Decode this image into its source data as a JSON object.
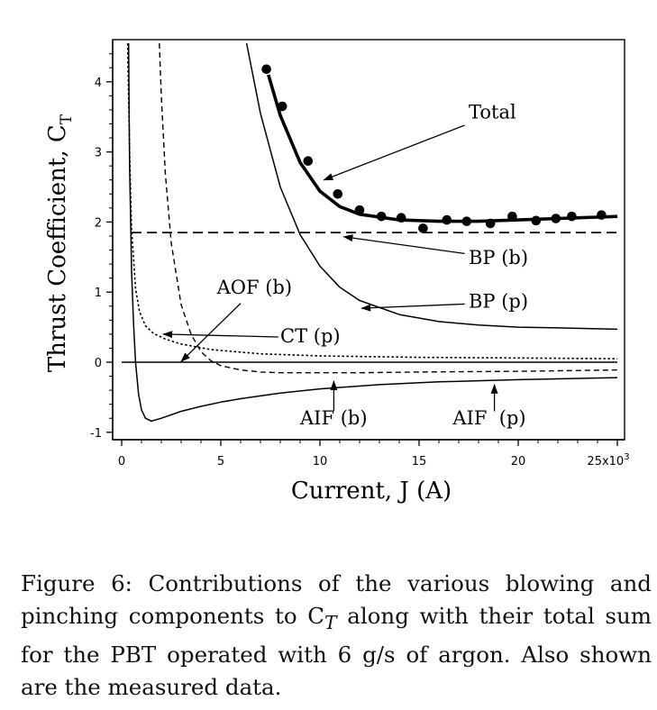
{
  "chart_data": {
    "type": "line",
    "xlabel": "Current, J (A)",
    "ylabel": "Thrust Coefficient, C",
    "ylabel_sub": "T",
    "x_ticks": [
      "0",
      "5",
      "10",
      "15",
      "20",
      "25x10"
    ],
    "x_ticks_exponent": "3",
    "y_ticks": [
      "-1",
      "0",
      "1",
      "2",
      "3",
      "4"
    ],
    "xlim": [
      0,
      25000
    ],
    "ylim": [
      -1.05,
      4.55
    ],
    "grid": false,
    "series": [
      {
        "name": "Total",
        "style": "thick",
        "x": [
          7400,
          8000,
          9000,
          10000,
          11000,
          12000,
          14000,
          16000,
          18000,
          20000,
          22000,
          24000,
          25000
        ],
        "y": [
          4.1,
          3.52,
          2.85,
          2.44,
          2.22,
          2.11,
          2.03,
          2.01,
          2.01,
          2.03,
          2.05,
          2.07,
          2.08
        ]
      },
      {
        "name": "BP (b)",
        "style": "dashed-long",
        "x": [
          500,
          25000
        ],
        "y": [
          1.85,
          1.85
        ]
      },
      {
        "name": "BP (p)",
        "style": "solid",
        "x": [
          6300,
          7000,
          8000,
          9000,
          10000,
          11000,
          12000,
          14000,
          16000,
          18000,
          20000,
          22000,
          25000
        ],
        "y": [
          4.55,
          3.55,
          2.5,
          1.82,
          1.37,
          1.07,
          0.88,
          0.68,
          0.58,
          0.53,
          0.5,
          0.49,
          0.47
        ]
      },
      {
        "name": "CT (p)",
        "style": "dotted",
        "x": [
          300,
          400,
          500,
          700,
          900,
          1200,
          1600,
          2200,
          3000,
          4500,
          7000,
          10000,
          15000,
          20000,
          25000
        ],
        "y": [
          4.55,
          3.0,
          1.9,
          1.05,
          0.72,
          0.52,
          0.41,
          0.33,
          0.26,
          0.18,
          0.12,
          0.09,
          0.07,
          0.06,
          0.05
        ]
      },
      {
        "name": "AOF (b)",
        "style": "solid",
        "x": [
          0,
          25000
        ],
        "y": [
          0.0,
          0.0
        ]
      },
      {
        "name": "AIF (b)",
        "style": "dashed",
        "x": [
          1900,
          2000,
          2200,
          2500,
          3000,
          3500,
          4000,
          4500,
          5000,
          6000,
          7000,
          8000,
          10000,
          12000,
          15000,
          20000,
          25000
        ],
        "y": [
          4.55,
          3.8,
          2.7,
          1.7,
          0.82,
          0.4,
          0.15,
          0.02,
          -0.05,
          -0.11,
          -0.14,
          -0.15,
          -0.15,
          -0.15,
          -0.14,
          -0.13,
          -0.11
        ]
      },
      {
        "name": "AIF (p)",
        "style": "solid",
        "x": [
          350,
          400,
          500,
          600,
          700,
          850,
          1000,
          1200,
          1500,
          2000,
          3000,
          4000,
          5000,
          6000,
          8000,
          10000,
          13000,
          16000,
          20000,
          25000
        ],
        "y": [
          4.55,
          2.8,
          1.3,
          0.55,
          0.0,
          -0.45,
          -0.68,
          -0.8,
          -0.84,
          -0.8,
          -0.7,
          -0.63,
          -0.57,
          -0.52,
          -0.44,
          -0.38,
          -0.32,
          -0.28,
          -0.25,
          -0.22
        ]
      }
    ],
    "measured_points": {
      "x": [
        7300,
        8100,
        9400,
        10900,
        12000,
        13100,
        14100,
        15200,
        16400,
        17400,
        18600,
        19700,
        20900,
        21900,
        22700,
        24200
      ],
      "y": [
        4.18,
        3.65,
        2.87,
        2.4,
        2.17,
        2.08,
        2.06,
        1.91,
        2.03,
        2.01,
        1.98,
        2.08,
        2.02,
        2.05,
        2.08,
        2.1
      ]
    },
    "annotations": [
      {
        "text": "Total",
        "label_at": [
          17500,
          3.48
        ],
        "arrow_from": [
          17300,
          3.38
        ],
        "arrow_to": [
          10200,
          2.6
        ]
      },
      {
        "text": "BP (b)",
        "label_at": [
          17500,
          1.4
        ],
        "arrow_from": [
          17300,
          1.55
        ],
        "arrow_to": [
          11200,
          1.79
        ]
      },
      {
        "text": "BP (p)",
        "label_at": [
          17500,
          0.78
        ],
        "arrow_from": [
          17300,
          0.83
        ],
        "arrow_to": [
          12100,
          0.77
        ]
      },
      {
        "text": "CT (p)",
        "label_at": [
          8000,
          0.28
        ],
        "arrow_from": [
          7900,
          0.36
        ],
        "arrow_to": [
          2100,
          0.4
        ]
      },
      {
        "text": "AOF (b)",
        "label_at": [
          4800,
          0.98
        ],
        "arrow_from": [
          6000,
          0.84
        ],
        "arrow_to": [
          3000,
          0.01
        ]
      },
      {
        "text": "AIF (b)",
        "label_at": [
          9000,
          -0.89
        ],
        "arrow_from": [
          10700,
          -0.7
        ],
        "arrow_to": [
          10700,
          -0.27
        ]
      },
      {
        "text": "AIF  (p)",
        "label_at": [
          16700,
          -0.89
        ],
        "arrow_from": [
          18800,
          -0.7
        ],
        "arrow_to": [
          18800,
          -0.32
        ]
      }
    ]
  },
  "caption": "Figure 6:  Contributions of the various blowing and pinching components to C",
  "caption_sub": "T",
  "caption_rest": " along with their total sum for the PBT operated with 6 g/s of argon.  Also shown are the measured data."
}
